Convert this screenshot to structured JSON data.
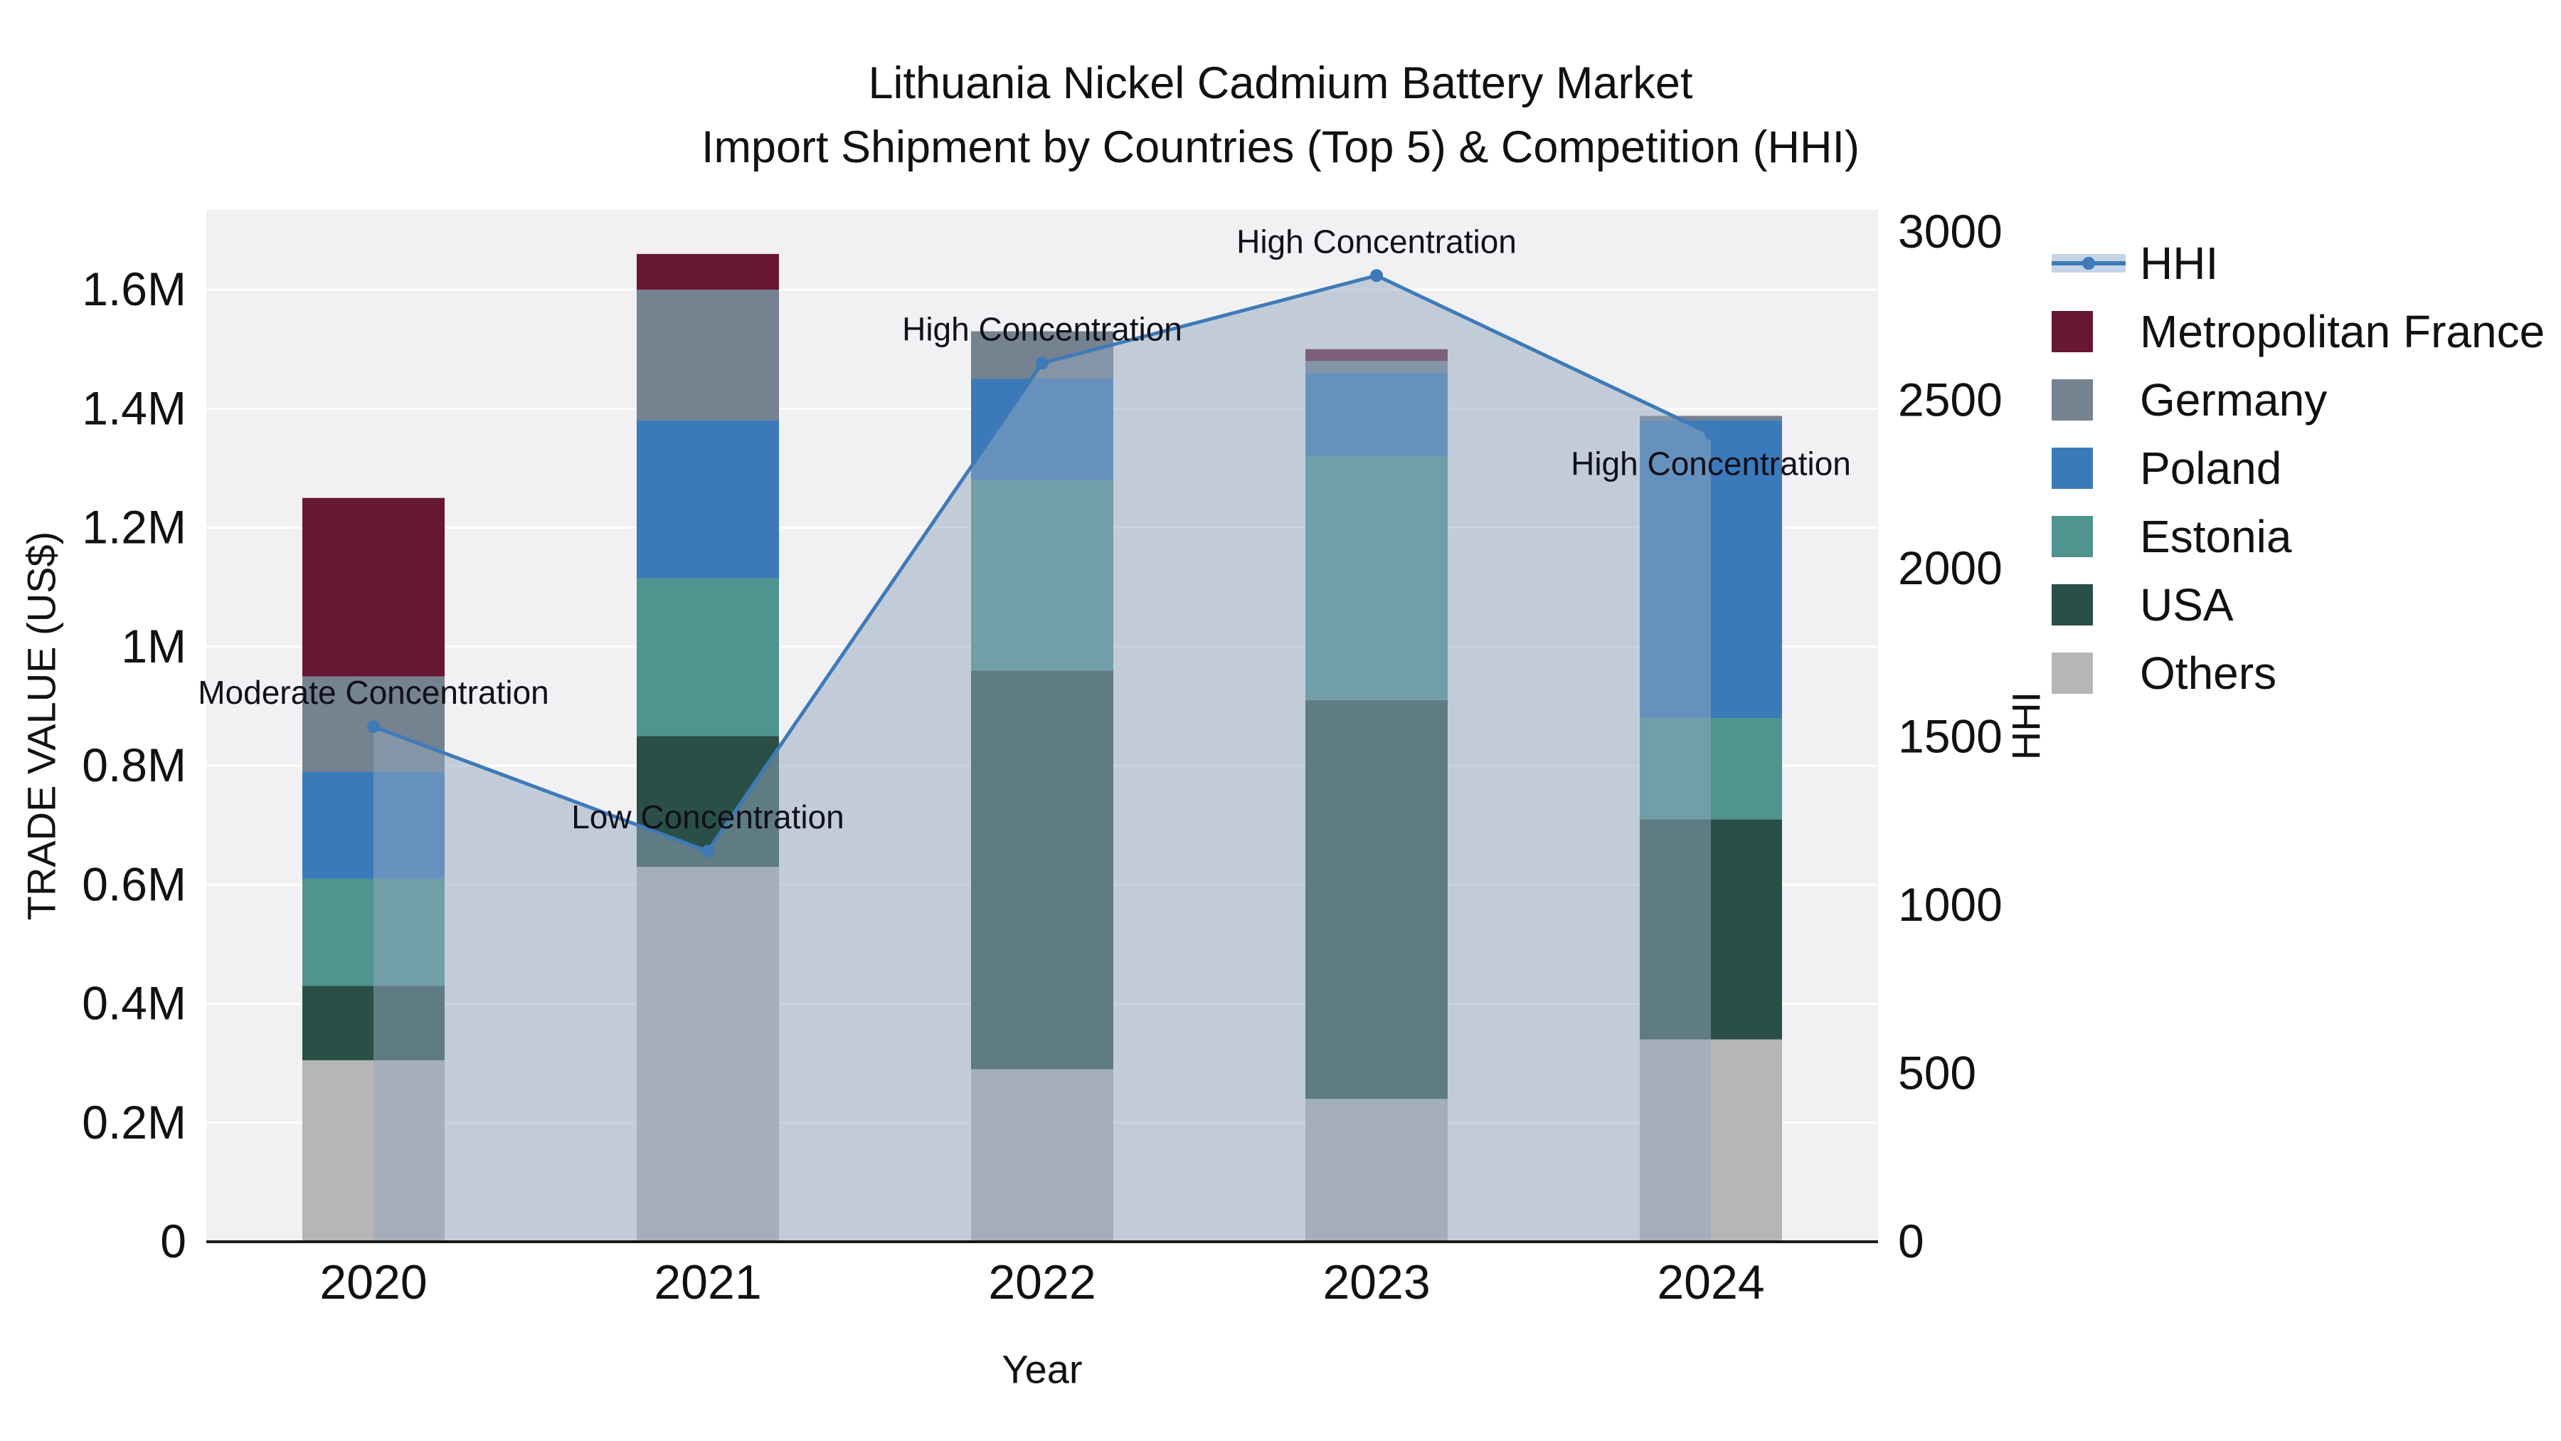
{
  "title": {
    "line1": "Lithuania Nickel Cadmium Battery Market",
    "line2": "Import Shipment by Countries (Top 5) & Competition (HHI)"
  },
  "axes": {
    "x_label": "Year",
    "y_left_label": "TRADE VALUE (US$)",
    "y_right_label": "HHI"
  },
  "legend": {
    "items": [
      {
        "label": "HHI",
        "type": "line",
        "color": "#3f7ab8"
      },
      {
        "label": "Metropolitan France",
        "type": "swatch",
        "color": "#671733"
      },
      {
        "label": "Germany",
        "type": "swatch",
        "color": "#75828f"
      },
      {
        "label": "Poland",
        "type": "swatch",
        "color": "#3a7aba"
      },
      {
        "label": "Estonia",
        "type": "swatch",
        "color": "#4f948e"
      },
      {
        "label": "USA",
        "type": "swatch",
        "color": "#2a4f46"
      },
      {
        "label": "Others",
        "type": "swatch",
        "color": "#b6b6b6"
      }
    ]
  },
  "chart_data": {
    "type": "bar",
    "subtype": "stacked-bars-with-hhi-line-and-area",
    "title": "Lithuania Nickel Cadmium Battery Market Import Shipment by Countries (Top 5) & Competition (HHI)",
    "xlabel": "Year",
    "ylabel_left": "TRADE VALUE (US$)",
    "ylabel_right": "HHI",
    "grid": true,
    "legend_position": "right",
    "categories": [
      "2020",
      "2021",
      "2022",
      "2023",
      "2024"
    ],
    "stack_order": "bottom_to_top",
    "series": [
      {
        "name": "Others",
        "color": "#b6b6b6",
        "values": [
          305000,
          630000,
          290000,
          240000,
          340000
        ]
      },
      {
        "name": "USA",
        "color": "#2a4f46",
        "values": [
          125000,
          220000,
          670000,
          670000,
          370000
        ]
      },
      {
        "name": "Estonia",
        "color": "#4f948e",
        "values": [
          180000,
          265000,
          320000,
          410000,
          170000
        ]
      },
      {
        "name": "Poland",
        "color": "#3a7aba",
        "values": [
          180000,
          265000,
          170000,
          140000,
          500000
        ]
      },
      {
        "name": "Germany",
        "color": "#75828f",
        "values": [
          160000,
          220000,
          80000,
          20000,
          8000
        ]
      },
      {
        "name": "Metropolitan France",
        "color": "#671733",
        "values": [
          300000,
          60000,
          0,
          20000,
          0
        ]
      }
    ],
    "line_series": {
      "name": "HHI",
      "axis": "right",
      "color": "#3f7ab8",
      "fill_color": "#93a8c0",
      "values": [
        1530,
        1160,
        2610,
        2870,
        2400
      ]
    },
    "annotations": [
      {
        "index": 0,
        "text": "Moderate Concentration",
        "position": "above"
      },
      {
        "index": 1,
        "text": "Low Concentration",
        "position": "above"
      },
      {
        "index": 2,
        "text": "High Concentration",
        "position": "above"
      },
      {
        "index": 3,
        "text": "High Concentration",
        "position": "above"
      },
      {
        "index": 4,
        "text": "High Concentration",
        "position": "below"
      }
    ],
    "y_left_max": 1734000,
    "y_right_max": 3065,
    "y_left_ticks": [
      {
        "label": "0",
        "value": 0
      },
      {
        "label": "0.2M",
        "value": 200000
      },
      {
        "label": "0.4M",
        "value": 400000
      },
      {
        "label": "0.6M",
        "value": 600000
      },
      {
        "label": "0.8M",
        "value": 800000
      },
      {
        "label": "1M",
        "value": 1000000
      },
      {
        "label": "1.2M",
        "value": 1200000
      },
      {
        "label": "1.4M",
        "value": 1400000
      },
      {
        "label": "1.6M",
        "value": 1600000
      }
    ],
    "y_right_ticks": [
      {
        "label": "0",
        "value": 0
      },
      {
        "label": "500",
        "value": 500
      },
      {
        "label": "1000",
        "value": 1000
      },
      {
        "label": "1500",
        "value": 1500
      },
      {
        "label": "2000",
        "value": 2000
      },
      {
        "label": "2500",
        "value": 2500
      },
      {
        "label": "3000",
        "value": 3000
      }
    ]
  }
}
